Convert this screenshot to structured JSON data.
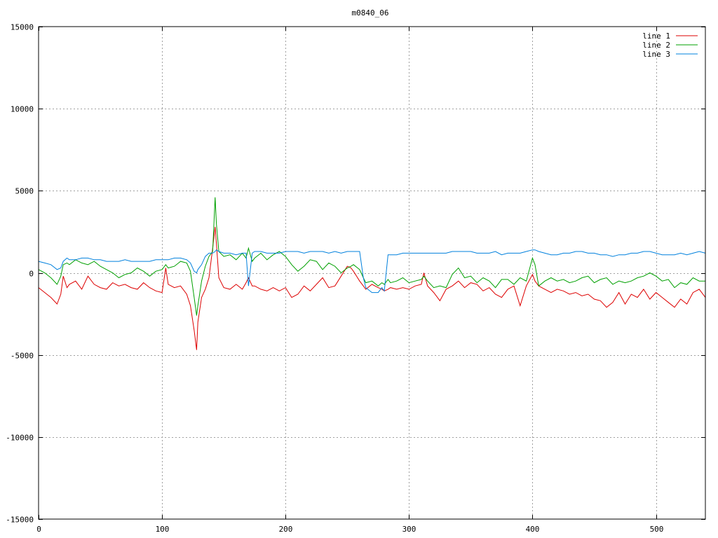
{
  "chart_data": {
    "type": "line",
    "title": "m0840_06",
    "xlabel": "",
    "ylabel": "",
    "xlim": [
      0,
      540
    ],
    "ylim": [
      -15000,
      15000
    ],
    "grid": true,
    "legend_position": "top-right",
    "x_ticks": [
      0,
      100,
      200,
      300,
      400,
      500
    ],
    "y_ticks": [
      -15000,
      -10000,
      -5000,
      0,
      5000,
      10000,
      15000
    ],
    "x": [
      0,
      5,
      10,
      15,
      18,
      20,
      23,
      25,
      30,
      35,
      40,
      45,
      50,
      55,
      60,
      65,
      70,
      75,
      80,
      85,
      90,
      95,
      100,
      103,
      105,
      110,
      115,
      120,
      123,
      126,
      128,
      129,
      132,
      135,
      138,
      141,
      143,
      144,
      146,
      150,
      155,
      160,
      165,
      168,
      170,
      173,
      175,
      180,
      185,
      190,
      195,
      200,
      205,
      210,
      215,
      220,
      225,
      230,
      235,
      240,
      245,
      250,
      253,
      255,
      260,
      263,
      265,
      270,
      275,
      278,
      280,
      283,
      285,
      290,
      295,
      300,
      305,
      310,
      312,
      315,
      320,
      325,
      330,
      335,
      340,
      345,
      350,
      355,
      360,
      365,
      370,
      375,
      380,
      385,
      390,
      395,
      400,
      402,
      405,
      410,
      415,
      420,
      425,
      430,
      435,
      440,
      445,
      450,
      455,
      460,
      465,
      470,
      475,
      480,
      485,
      490,
      495,
      500,
      505,
      510,
      515,
      520,
      525,
      530,
      535,
      540
    ],
    "series": [
      {
        "name": "line 1",
        "color": "#dd0000",
        "values": [
          -900,
          -1200,
          -1500,
          -1900,
          -1300,
          -200,
          -900,
          -700,
          -500,
          -1000,
          -200,
          -700,
          -900,
          -1000,
          -600,
          -800,
          -700,
          -900,
          -1000,
          -600,
          -900,
          -1100,
          -1200,
          300,
          -700,
          -900,
          -800,
          -1300,
          -2000,
          -3500,
          -4700,
          -3000,
          -1500,
          -1000,
          -300,
          1500,
          2800,
          1800,
          -300,
          -900,
          -1000,
          -700,
          -1000,
          -600,
          -300,
          -800,
          -800,
          -1000,
          -1100,
          -900,
          -1100,
          -900,
          -1500,
          -1300,
          -800,
          -1100,
          -700,
          -300,
          -900,
          -800,
          -200,
          400,
          300,
          100,
          -500,
          -800,
          -1000,
          -700,
          -900,
          -1000,
          -1100,
          -1000,
          -900,
          -1000,
          -900,
          -1000,
          -800,
          -700,
          0,
          -800,
          -1200,
          -1700,
          -1000,
          -800,
          -500,
          -900,
          -600,
          -700,
          -1100,
          -900,
          -1300,
          -1500,
          -1000,
          -800,
          -2000,
          -800,
          -100,
          -500,
          -800,
          -1000,
          -1200,
          -1000,
          -1100,
          -1300,
          -1200,
          -1400,
          -1300,
          -1600,
          -1700,
          -2100,
          -1800,
          -1200,
          -1900,
          -1300,
          -1500,
          -1000,
          -1600,
          -1200,
          -1500,
          -1800,
          -2100,
          -1600,
          -1900,
          -1200,
          -1000,
          -1500
        ]
      },
      {
        "name": "line 2",
        "color": "#00a000",
        "values": [
          200,
          0,
          -300,
          -700,
          -200,
          500,
          600,
          500,
          800,
          600,
          500,
          700,
          400,
          200,
          0,
          -300,
          -100,
          0,
          300,
          100,
          -200,
          100,
          200,
          500,
          300,
          400,
          700,
          600,
          100,
          -1500,
          -2600,
          -2000,
          -500,
          400,
          1000,
          1300,
          4600,
          3000,
          1300,
          1000,
          1100,
          800,
          1200,
          900,
          1500,
          700,
          900,
          1200,
          800,
          1100,
          1300,
          1000,
          500,
          100,
          400,
          800,
          700,
          200,
          600,
          400,
          0,
          300,
          400,
          500,
          200,
          -300,
          -600,
          -500,
          -800,
          -600,
          -700,
          -400,
          -600,
          -500,
          -300,
          -600,
          -500,
          -400,
          -200,
          -500,
          -900,
          -800,
          -900,
          -100,
          300,
          -300,
          -200,
          -600,
          -300,
          -500,
          -900,
          -400,
          -400,
          -700,
          -300,
          -500,
          900,
          500,
          -800,
          -500,
          -300,
          -500,
          -400,
          -600,
          -500,
          -300,
          -200,
          -600,
          -400,
          -300,
          -700,
          -500,
          -600,
          -500,
          -300,
          -200,
          0,
          -200,
          -500,
          -400,
          -900,
          -600,
          -700,
          -300,
          -500,
          -500
        ]
      },
      {
        "name": "line 3",
        "color": "#0080dd",
        "values": [
          700,
          600,
          500,
          200,
          300,
          700,
          900,
          800,
          800,
          900,
          900,
          800,
          800,
          700,
          700,
          700,
          800,
          700,
          700,
          700,
          700,
          800,
          800,
          800,
          800,
          900,
          900,
          800,
          600,
          100,
          0,
          200,
          500,
          1000,
          1200,
          1200,
          1300,
          1400,
          1300,
          1200,
          1200,
          1100,
          1200,
          1200,
          -800,
          1200,
          1300,
          1300,
          1200,
          1200,
          1200,
          1300,
          1300,
          1300,
          1200,
          1300,
          1300,
          1300,
          1200,
          1300,
          1200,
          1300,
          1300,
          1300,
          1300,
          -300,
          -900,
          -1200,
          -1200,
          -900,
          -1100,
          1100,
          1100,
          1100,
          1200,
          1200,
          1200,
          1200,
          1200,
          1200,
          1200,
          1200,
          1200,
          1300,
          1300,
          1300,
          1300,
          1200,
          1200,
          1200,
          1300,
          1100,
          1200,
          1200,
          1200,
          1300,
          1400,
          1400,
          1300,
          1200,
          1100,
          1100,
          1200,
          1200,
          1300,
          1300,
          1200,
          1200,
          1100,
          1100,
          1000,
          1100,
          1100,
          1200,
          1200,
          1300,
          1300,
          1200,
          1100,
          1100,
          1100,
          1200,
          1100,
          1200,
          1300,
          1200
        ]
      }
    ]
  }
}
